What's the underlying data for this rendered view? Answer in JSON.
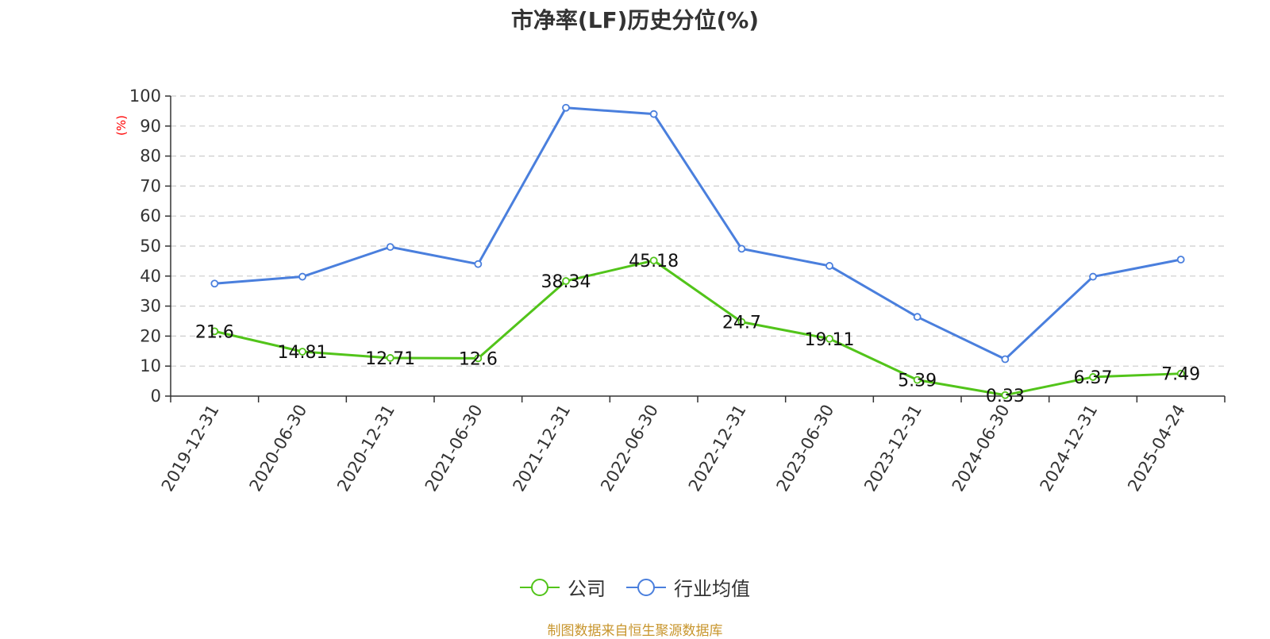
{
  "chart_data": {
    "type": "line",
    "title": "市净率(LF)历史分位(%)",
    "ylabel": "(%)",
    "xlabel": "",
    "ylim": [
      0,
      100
    ],
    "yticks": [
      0,
      10,
      20,
      30,
      40,
      50,
      60,
      70,
      80,
      90,
      100
    ],
    "grid": true,
    "legend": "bottom-center",
    "categories": [
      "2019-12-31",
      "2020-06-30",
      "2020-12-31",
      "2021-06-30",
      "2021-12-31",
      "2022-06-30",
      "2022-12-31",
      "2023-06-30",
      "2023-12-31",
      "2024-06-30",
      "2024-12-31",
      "2025-04-24"
    ],
    "series": [
      {
        "name": "公司",
        "color": "#52c41a",
        "values": [
          21.6,
          14.81,
          12.71,
          12.6,
          38.34,
          45.18,
          24.7,
          19.11,
          5.39,
          0.33,
          6.37,
          7.49
        ],
        "labels": [
          "21.6",
          "14.81",
          "12.71",
          "12.6",
          "38.34",
          "45.18",
          "24.7",
          "19.11",
          "5.39",
          "0.33",
          "6.37",
          "7.49"
        ],
        "show_labels": true
      },
      {
        "name": "行业均值",
        "color": "#4a7fdd",
        "values": [
          37.5,
          39.8,
          49.7,
          44,
          96.1,
          94,
          49.1,
          43.4,
          26.4,
          12.3,
          39.8,
          45.5
        ],
        "show_labels": false
      }
    ]
  },
  "source_note": "制图数据来自恒生聚源数据库",
  "colors": {
    "axis": "#333333",
    "grid": "#cccccc",
    "ylabel": "#ff0000",
    "source": "#c8962e"
  }
}
